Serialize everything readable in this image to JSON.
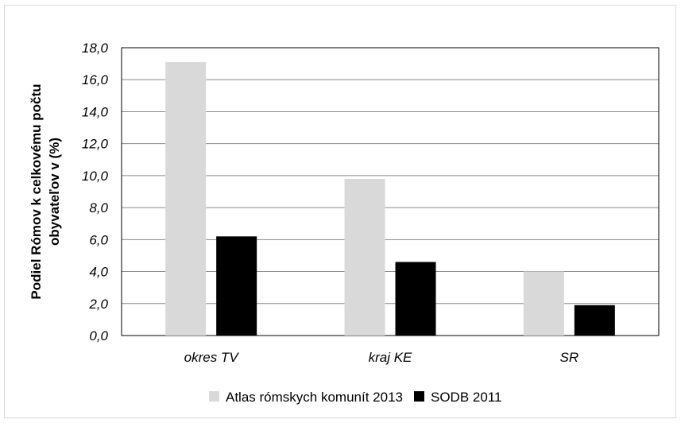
{
  "chart_data": {
    "type": "bar",
    "categories": [
      "okres TV",
      "kraj KE",
      "SR"
    ],
    "series": [
      {
        "name": "Atlas rómskych komunít 2013",
        "color": "#d9d9d9",
        "values": [
          17.1,
          9.8,
          4.0
        ]
      },
      {
        "name": "SODB 2011",
        "color": "#000000",
        "values": [
          6.2,
          4.6,
          1.9
        ]
      }
    ],
    "title": "",
    "xlabel": "",
    "ylabel_lines": [
      "Podiel Rómov k celkovému počtu",
      "obyvateľov v (%)"
    ],
    "ylim": [
      0,
      18
    ],
    "yticks": [
      "0,0",
      "2,0",
      "4,0",
      "6,0",
      "8,0",
      "10,0",
      "12,0",
      "14,0",
      "16,0",
      "18,0"
    ],
    "grid": true,
    "legend_position": "bottom"
  }
}
